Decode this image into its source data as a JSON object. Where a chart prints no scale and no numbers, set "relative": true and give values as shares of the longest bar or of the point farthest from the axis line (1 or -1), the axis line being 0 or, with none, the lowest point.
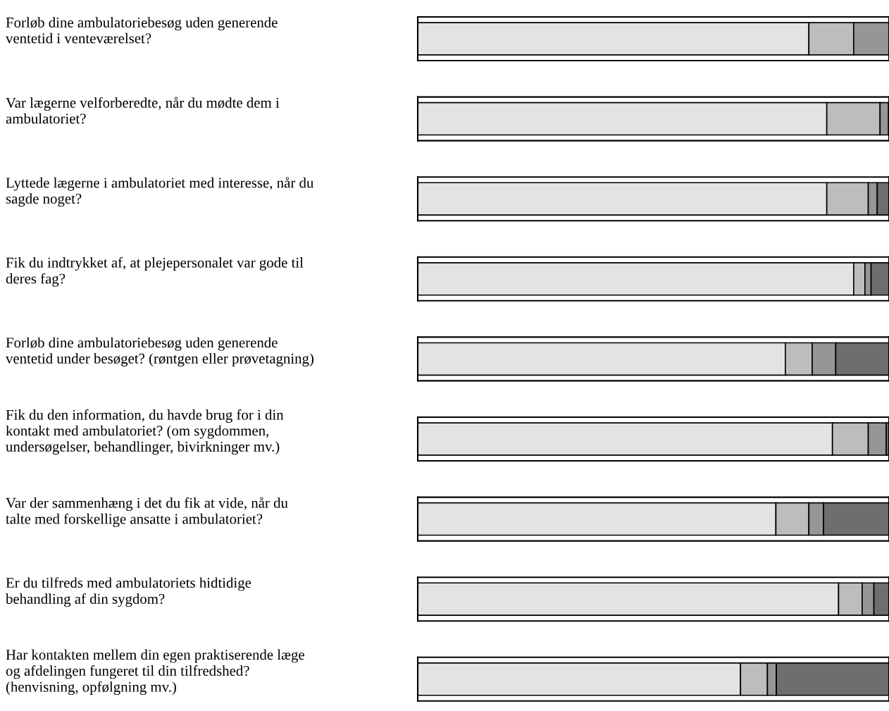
{
  "chart_data": {
    "type": "bar",
    "orientation": "horizontal",
    "stacked": true,
    "relative": true,
    "categories": [
      "Forløb dine ambulatoriebesøg uden generende\nventetid i venteværelset?",
      "Var lægerne velforberedte, når du mødte dem i\nambulatoriet?",
      "Lyttede lægerne i ambulatoriet med interesse, når du\nsagde noget?",
      "Fik du indtrykket af, at plejepersonalet var gode til\nderes fag?",
      "Forløb dine ambulatoriebesøg uden generende\nventetid under besøget? (røntgen eller prøvetagning)",
      "Fik du den information, du havde brug for i din\nkontakt med ambulatoriet? (om sygdommen,\nundersøgelser, behandlinger, bivirkninger mv.)",
      "Var der sammenhæng i det du fik at vide, når du\ntalte med forskellige ansatte i ambulatoriet?",
      "Er du tilfreds med ambulatoriets hidtidige\nbehandling af din sygdom?",
      "Har kontakten mellem din egen praktiserende læge\nog afdelingen fungeret til din tilfredshed?\n(henvisning, opfølgning mv.)"
    ],
    "series": [
      {
        "color": "#e3e3e3",
        "values": [
          0.83,
          0.868,
          0.868,
          0.925,
          0.78,
          0.88,
          0.76,
          0.893,
          0.685
        ]
      },
      {
        "color": "#bdbdbd",
        "values": [
          0.095,
          0.113,
          0.088,
          0.024,
          0.057,
          0.076,
          0.07,
          0.05,
          0.057
        ]
      },
      {
        "color": "#969696",
        "values": [
          0.075,
          0.018,
          0.019,
          0.013,
          0.05,
          0.038,
          0.031,
          0.025,
          0.019
        ]
      },
      {
        "color": "#6e6e6e",
        "values": [
          0.0,
          0.001,
          0.025,
          0.038,
          0.113,
          0.006,
          0.139,
          0.032,
          0.239
        ]
      }
    ]
  }
}
